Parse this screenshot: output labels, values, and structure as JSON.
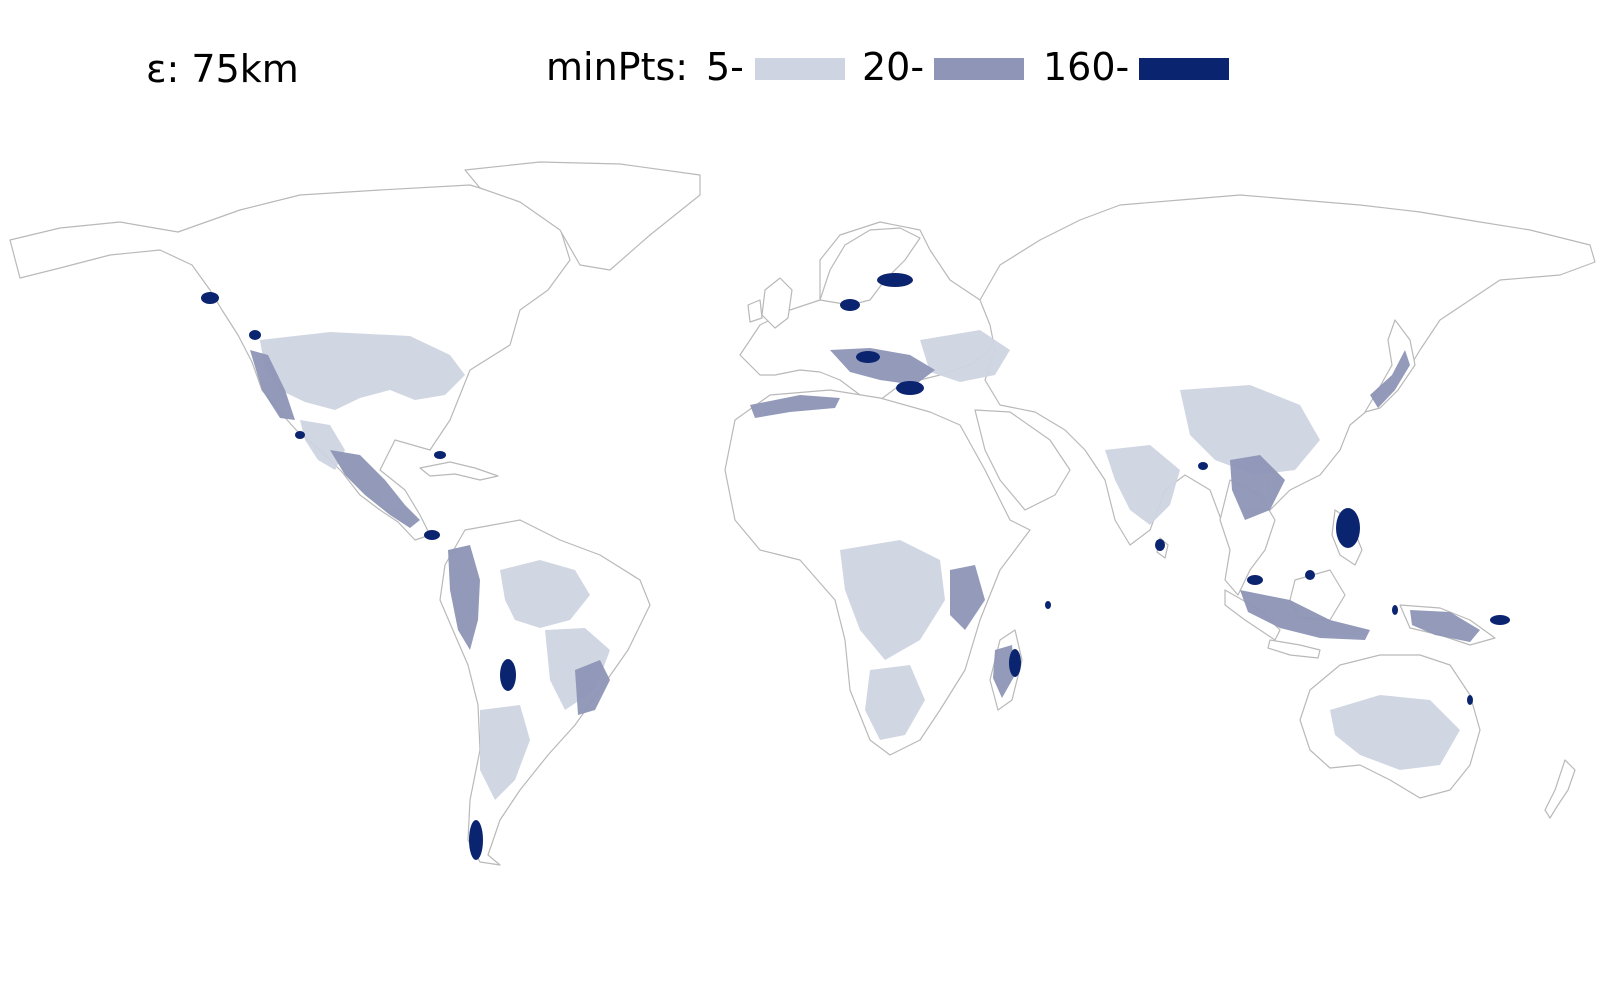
{
  "header": {
    "epsilon_label": "ε: 75km",
    "minpts_label": "minPts:",
    "levels": [
      {
        "label": "5-",
        "color": "#cfd4e2"
      },
      {
        "label": "20-",
        "color": "#8e95b6"
      },
      {
        "label": "160-",
        "color": "#0b2470"
      }
    ]
  },
  "map": {
    "land_stroke_color": "#b9b9b9",
    "land_fill_color": "#ffffff",
    "cluster_levels": [
      "5-",
      "20-",
      "160-"
    ]
  }
}
